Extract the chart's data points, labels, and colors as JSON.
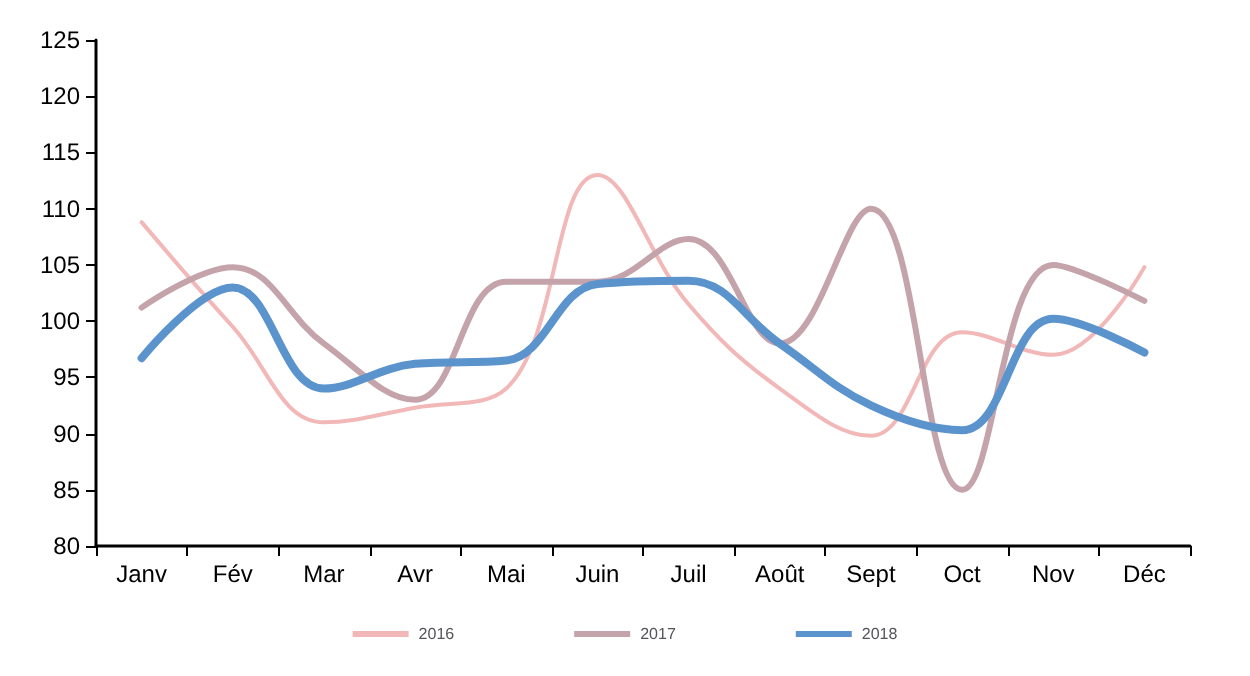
{
  "chart_data": {
    "type": "line",
    "categories": [
      "Janv",
      "Fév",
      "Mar",
      "Avr",
      "Mai",
      "Juin",
      "Juil",
      "Août",
      "Sept",
      "Oct",
      "Nov",
      "Déc"
    ],
    "series": [
      {
        "name": "2016",
        "color": "#f2b8b8",
        "values": [
          108.8,
          99.5,
          91,
          92.3,
          94,
          113,
          101.5,
          94,
          89.8,
          99,
          97,
          104.8
        ]
      },
      {
        "name": "2017",
        "color": "#c4a3ab",
        "values": [
          101.2,
          104.8,
          98,
          93,
          103.5,
          103.5,
          107.3,
          98,
          110,
          85,
          105,
          101.8
        ]
      },
      {
        "name": "2018",
        "color": "#5b93cd",
        "values": [
          96.7,
          103,
          94,
          96.2,
          96.5,
          103.3,
          103.6,
          98,
          92.5,
          90.3,
          100.2,
          97.2
        ]
      }
    ],
    "ylim": [
      80,
      125
    ],
    "yticks": [
      80,
      85,
      90,
      95,
      100,
      105,
      110,
      115,
      120,
      125
    ],
    "grid": false,
    "legend": "bottom",
    "marker": "none",
    "line_style": "solid"
  }
}
